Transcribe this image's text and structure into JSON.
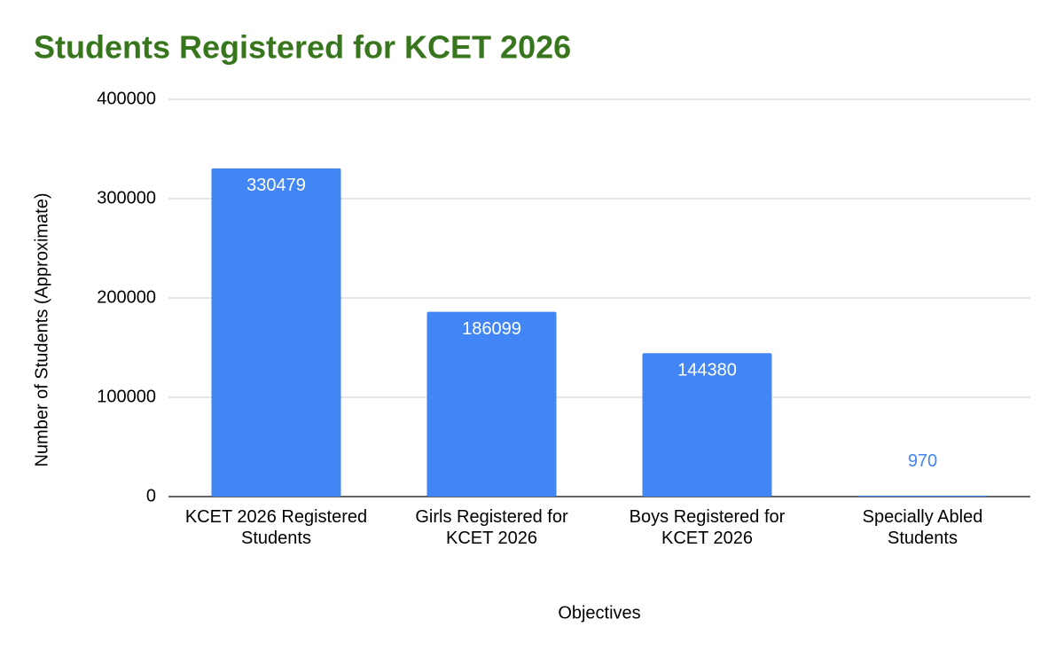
{
  "chart_data": {
    "type": "bar",
    "title": "Students Registered for KCET 2026",
    "x_label": "Objectives",
    "y_label": "Number of Students (Approximate)",
    "categories": [
      "KCET 2026 Registered Students",
      "Girls Registered for KCET 2026",
      "Boys Registered for KCET 2026",
      "Specially Abled Students"
    ],
    "values": [
      330479,
      186099,
      144380,
      970
    ],
    "color": "#4285f4",
    "title_color": "#38761d",
    "ylim": [
      0,
      400000
    ],
    "yticks": [
      0,
      100000,
      200000,
      300000,
      400000
    ],
    "grid": true
  }
}
